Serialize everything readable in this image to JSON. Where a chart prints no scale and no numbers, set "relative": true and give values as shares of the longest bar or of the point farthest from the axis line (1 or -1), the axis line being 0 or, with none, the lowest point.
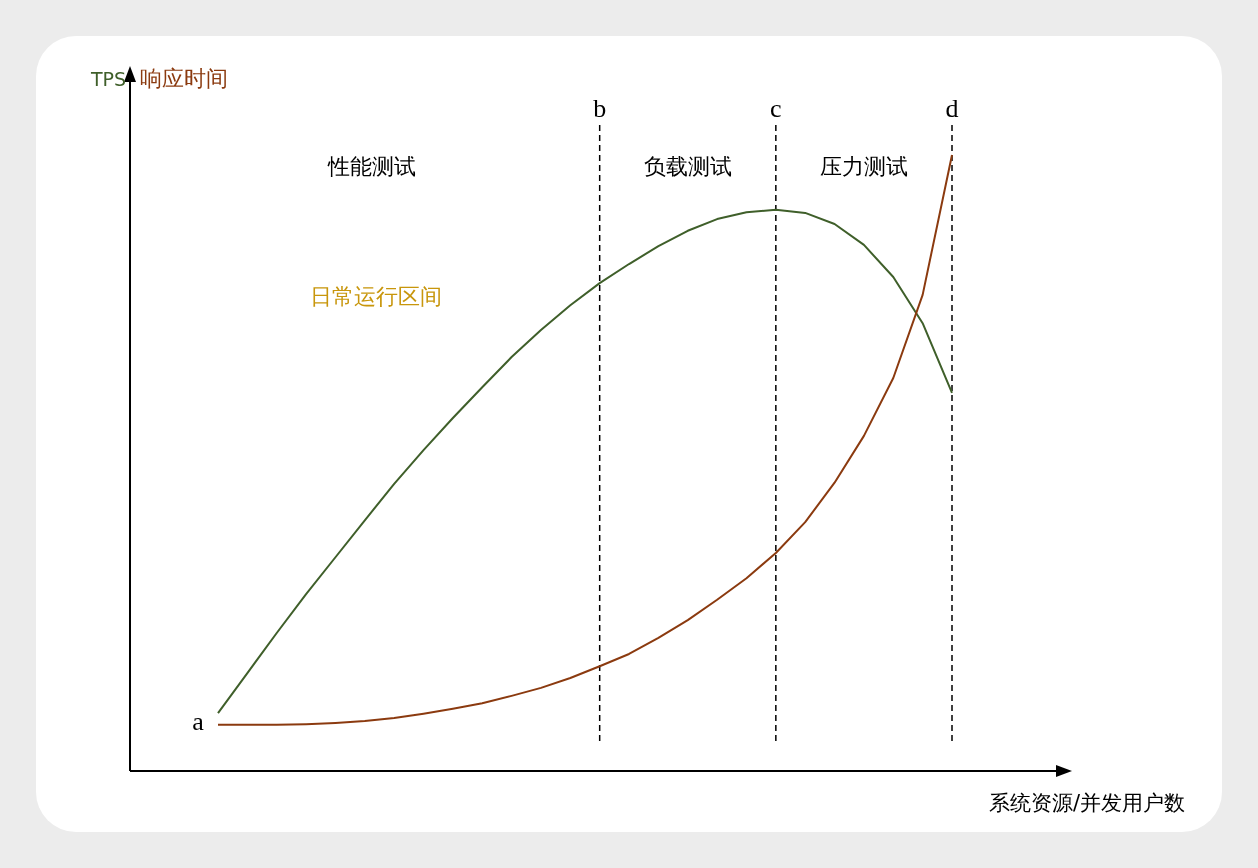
{
  "chart_data": {
    "type": "line",
    "relative": true,
    "categories": [
      null,
      null,
      null,
      null,
      null,
      null,
      null,
      null,
      null,
      null,
      null,
      null,
      null,
      null,
      null,
      null,
      null,
      null,
      null,
      null,
      null,
      null,
      null,
      null,
      null,
      null
    ],
    "series": [
      {
        "name": "TPS",
        "color": "#3f5f2a",
        "values": [
          0.094,
          0.159,
          0.224,
          0.287,
          0.347,
          0.407,
          0.466,
          0.521,
          0.573,
          0.623,
          0.672,
          0.716,
          0.756,
          0.792,
          0.823,
          0.852,
          0.877,
          0.896,
          0.907,
          0.911,
          0.906,
          0.888,
          0.854,
          0.802,
          0.727,
          0.614
        ]
      },
      {
        "name": "响应时间",
        "color": "#8b3a0f",
        "values": [
          0.075,
          0.075,
          0.075,
          0.076,
          0.078,
          0.081,
          0.086,
          0.093,
          0.101,
          0.11,
          0.122,
          0.135,
          0.151,
          0.17,
          0.19,
          0.216,
          0.245,
          0.278,
          0.313,
          0.354,
          0.404,
          0.468,
          0.544,
          0.638,
          0.773,
          1
        ]
      }
    ],
    "xlabel": "系统资源/并发用户数",
    "grid": "x",
    "annotations": [
      "a",
      "性能测试",
      "负载测试",
      "压力测试",
      "日常运行区间",
      "b",
      "c",
      "d"
    ]
  }
}
